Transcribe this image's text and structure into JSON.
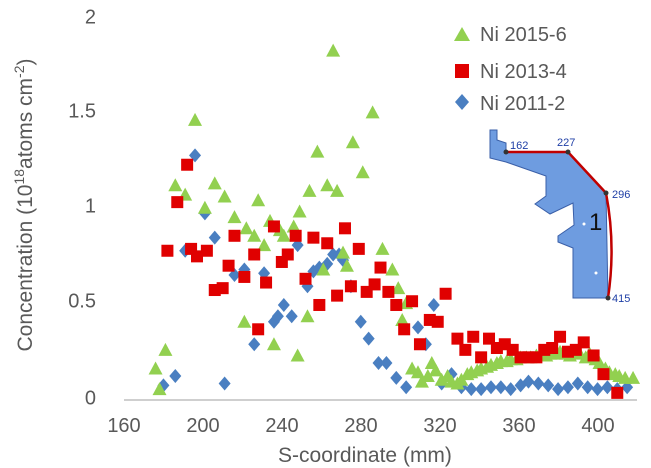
{
  "chart_data": {
    "type": "scatter",
    "xlabel": "S-coordinate (mm)",
    "ylabel_main": "Concentration (10",
    "ylabel_sup1": "18",
    "ylabel_mid": "atoms cm",
    "ylabel_sup2": "-2",
    "ylabel_end": ")",
    "xlim": [
      160,
      420
    ],
    "ylim": [
      0,
      2
    ],
    "xticks": [
      "160",
      "200",
      "240",
      "280",
      "320",
      "360",
      "400"
    ],
    "yticks": [
      "0",
      "0.5",
      "1",
      "1.5",
      "2"
    ],
    "grid": false,
    "legend_position": "top-right",
    "series": [
      {
        "name": "Ni 2015-6",
        "marker": "triangle",
        "color": "#92d050",
        "points": [
          [
            176,
            0.12
          ],
          [
            178,
            0.01
          ],
          [
            181,
            0.22
          ],
          [
            186,
            1.1
          ],
          [
            191,
            1.05
          ],
          [
            196,
            1.45
          ],
          [
            201,
            0.98
          ],
          [
            206,
            1.11
          ],
          [
            211,
            1.04
          ],
          [
            216,
            0.93
          ],
          [
            221,
            0.37
          ],
          [
            222,
            0.87
          ],
          [
            226,
            0.83
          ],
          [
            228,
            1.02
          ],
          [
            231,
            0.78
          ],
          [
            234,
            0.91
          ],
          [
            236,
            0.25
          ],
          [
            239,
            0.86
          ],
          [
            241,
            0.83
          ],
          [
            246,
            0.88
          ],
          [
            248,
            0.19
          ],
          [
            249,
            0.96
          ],
          [
            253,
            0.4
          ],
          [
            254,
            1.07
          ],
          [
            258,
            1.28
          ],
          [
            261,
            0.65
          ],
          [
            263,
            1.1
          ],
          [
            266,
            1.82
          ],
          [
            268,
            1.07
          ],
          [
            271,
            0.74
          ],
          [
            273,
            0.67
          ],
          [
            276,
            1.33
          ],
          [
            281,
            1.17
          ],
          [
            286,
            1.49
          ],
          [
            291,
            0.76
          ],
          [
            296,
            0.65
          ],
          [
            299,
            0.55
          ],
          [
            301,
            0.38
          ],
          [
            303,
            0.47
          ],
          [
            306,
            0.12
          ],
          [
            309,
            0.1
          ],
          [
            311,
            0.05
          ],
          [
            314,
            0.08
          ],
          [
            316,
            0.15
          ],
          [
            318,
            0.11
          ],
          [
            321,
            0.06
          ],
          [
            324,
            0.08
          ],
          [
            326,
            0.05
          ],
          [
            329,
            0.04
          ],
          [
            331,
            0.06
          ],
          [
            334,
            0.09
          ],
          [
            336,
            0.1
          ],
          [
            339,
            0.11
          ],
          [
            341,
            0.12
          ],
          [
            344,
            0.13
          ],
          [
            346,
            0.14
          ],
          [
            349,
            0.15
          ],
          [
            351,
            0.16
          ],
          [
            354,
            0.16
          ],
          [
            356,
            0.17
          ],
          [
            359,
            0.17
          ],
          [
            361,
            0.18
          ],
          [
            364,
            0.18
          ],
          [
            366,
            0.18
          ],
          [
            369,
            0.19
          ],
          [
            371,
            0.19
          ],
          [
            374,
            0.19
          ],
          [
            376,
            0.2
          ],
          [
            379,
            0.2
          ],
          [
            381,
            0.21
          ],
          [
            384,
            0.2
          ],
          [
            386,
            0.19
          ],
          [
            389,
            0.21
          ],
          [
            391,
            0.2
          ],
          [
            394,
            0.18
          ],
          [
            396,
            0.2
          ],
          [
            399,
            0.17
          ],
          [
            401,
            0.15
          ],
          [
            404,
            0.12
          ],
          [
            406,
            0.1
          ],
          [
            409,
            0.09
          ],
          [
            411,
            0.08
          ],
          [
            414,
            0.07
          ],
          [
            418,
            0.07
          ]
        ]
      },
      {
        "name": "Ni 2013-4",
        "marker": "square",
        "color": "#e00000",
        "points": [
          [
            182,
            0.75
          ],
          [
            187,
            1.01
          ],
          [
            192,
            1.21
          ],
          [
            194,
            0.76
          ],
          [
            197,
            0.72
          ],
          [
            202,
            0.75
          ],
          [
            206,
            0.54
          ],
          [
            210,
            0.55
          ],
          [
            213,
            0.67
          ],
          [
            216,
            0.83
          ],
          [
            221,
            0.61
          ],
          [
            226,
            0.73
          ],
          [
            228,
            0.33
          ],
          [
            232,
            0.58
          ],
          [
            236,
            0.88
          ],
          [
            240,
            0.69
          ],
          [
            243,
            0.73
          ],
          [
            247,
            0.83
          ],
          [
            252,
            0.6
          ],
          [
            256,
            0.82
          ],
          [
            259,
            0.46
          ],
          [
            263,
            0.79
          ],
          [
            268,
            0.51
          ],
          [
            272,
            0.87
          ],
          [
            275,
            0.56
          ],
          [
            279,
            0.76
          ],
          [
            283,
            0.53
          ],
          [
            287,
            0.57
          ],
          [
            290,
            0.66
          ],
          [
            294,
            0.53
          ],
          [
            298,
            0.46
          ],
          [
            302,
            0.33
          ],
          [
            306,
            0.48
          ],
          [
            310,
            0.25
          ],
          [
            315,
            0.38
          ],
          [
            319,
            0.37
          ],
          [
            323,
            0.52
          ],
          [
            329,
            0.28
          ],
          [
            333,
            0.22
          ],
          [
            337,
            0.29
          ],
          [
            341,
            0.18
          ],
          [
            345,
            0.28
          ],
          [
            349,
            0.23
          ],
          [
            353,
            0.25
          ],
          [
            357,
            0.22
          ],
          [
            361,
            0.18
          ],
          [
            365,
            0.18
          ],
          [
            369,
            0.18
          ],
          [
            373,
            0.22
          ],
          [
            377,
            0.23
          ],
          [
            381,
            0.29
          ],
          [
            385,
            0.21
          ],
          [
            389,
            0.22
          ],
          [
            393,
            0.26
          ],
          [
            398,
            0.19
          ],
          [
            403,
            0.09
          ],
          [
            410,
            -0.01
          ]
        ]
      },
      {
        "name": "Ni 2011-2",
        "marker": "diamond",
        "color": "#4a7fc1",
        "points": [
          [
            180,
            0.03
          ],
          [
            186,
            0.08
          ],
          [
            191,
            0.75
          ],
          [
            196,
            1.26
          ],
          [
            201,
            0.95
          ],
          [
            206,
            0.82
          ],
          [
            211,
            0.04
          ],
          [
            216,
            0.62
          ],
          [
            221,
            0.65
          ],
          [
            226,
            0.25
          ],
          [
            231,
            0.63
          ],
          [
            236,
            0.37
          ],
          [
            238,
            0.4
          ],
          [
            241,
            0.46
          ],
          [
            245,
            0.4
          ],
          [
            248,
            0.78
          ],
          [
            253,
            0.56
          ],
          [
            256,
            0.64
          ],
          [
            259,
            0.66
          ],
          [
            263,
            0.68
          ],
          [
            266,
            0.73
          ],
          [
            269,
            0.73
          ],
          [
            271,
            0.7
          ],
          [
            275,
            0.56
          ],
          [
            280,
            0.37
          ],
          [
            284,
            0.28
          ],
          [
            289,
            0.15
          ],
          [
            293,
            0.15
          ],
          [
            298,
            0.07
          ],
          [
            303,
            0.02
          ],
          [
            309,
            0.34
          ],
          [
            313,
            0.25
          ],
          [
            317,
            0.46
          ],
          [
            321,
            0.04
          ],
          [
            326,
            0.09
          ],
          [
            331,
            0.02
          ],
          [
            336,
            0.01
          ],
          [
            341,
            0.01
          ],
          [
            346,
            0.02
          ],
          [
            351,
            0.02
          ],
          [
            356,
            0.01
          ],
          [
            361,
            0.03
          ],
          [
            365,
            0.05
          ],
          [
            370,
            0.04
          ],
          [
            375,
            0.03
          ],
          [
            380,
            0.01
          ],
          [
            385,
            0.02
          ],
          [
            390,
            0.04
          ],
          [
            395,
            0.02
          ],
          [
            400,
            0.01
          ],
          [
            405,
            0.02
          ],
          [
            410,
            0.01
          ],
          [
            415,
            0.02
          ]
        ]
      }
    ]
  },
  "inset": {
    "labels": [
      "162",
      "227",
      "296",
      "415"
    ],
    "region_label": "1",
    "fill": "#6e9ce0",
    "outline": "#3a5fa8",
    "edge": "#c00000"
  }
}
